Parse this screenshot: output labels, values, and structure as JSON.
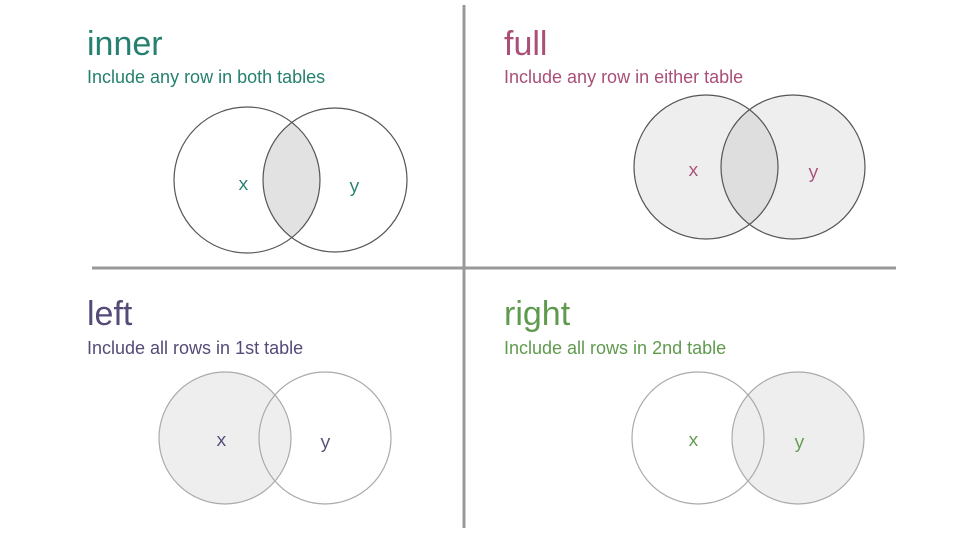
{
  "panels": {
    "inner": {
      "title": "inner",
      "subtitle": "Include any row in both tables",
      "color": "#25806f",
      "x_label": "x",
      "y_label": "y",
      "shaded": "intersection"
    },
    "full": {
      "title": "full",
      "subtitle": "Include any row in either table",
      "color": "#a94f78",
      "x_label": "x",
      "y_label": "y",
      "shaded": "both"
    },
    "left": {
      "title": "left",
      "subtitle": "Include all rows in 1st table",
      "color": "#554a78",
      "x_label": "x",
      "y_label": "y",
      "shaded": "x"
    },
    "right": {
      "title": "right",
      "subtitle": "Include all rows in 2nd table",
      "color": "#5f9a4e",
      "x_label": "x",
      "y_label": "y",
      "shaded": "y"
    }
  },
  "colors": {
    "fill": "#eeeeee",
    "overlap": "#dddddd",
    "divider": "#999999"
  }
}
